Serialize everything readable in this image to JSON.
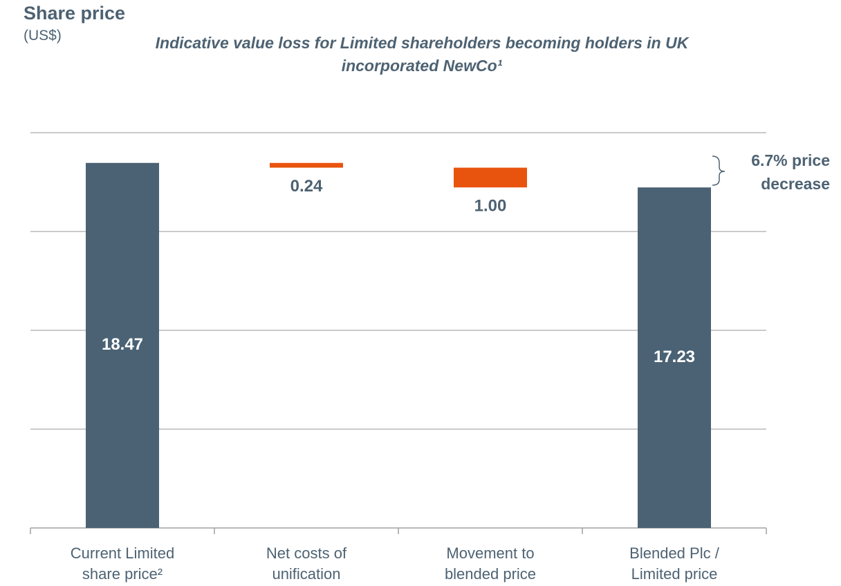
{
  "chart_data": {
    "type": "waterfall",
    "title": "Share price",
    "subtitle": "(US$)",
    "chart_title": "Indicative value loss for Limited shareholders becoming holders in UK incorporated NewCo¹",
    "annotation": "6.7% price decrease",
    "categories": [
      "Current Limited share price²",
      "Net costs of unification",
      "Movement to blended price",
      "Blended Plc / Limited price"
    ],
    "values": [
      18.47,
      0.24,
      1,
      17.23
    ],
    "value_labels": [
      "18.47",
      "0.24",
      "1.00",
      "17.23"
    ],
    "measures": [
      "absolute",
      "decrease",
      "decrease",
      "total"
    ],
    "color": "#4a6274",
    "decrease_color": "#e8540e",
    "ylim": [
      0,
      20
    ],
    "yticks": [
      0,
      5,
      10,
      15,
      20
    ],
    "grid": true
  }
}
